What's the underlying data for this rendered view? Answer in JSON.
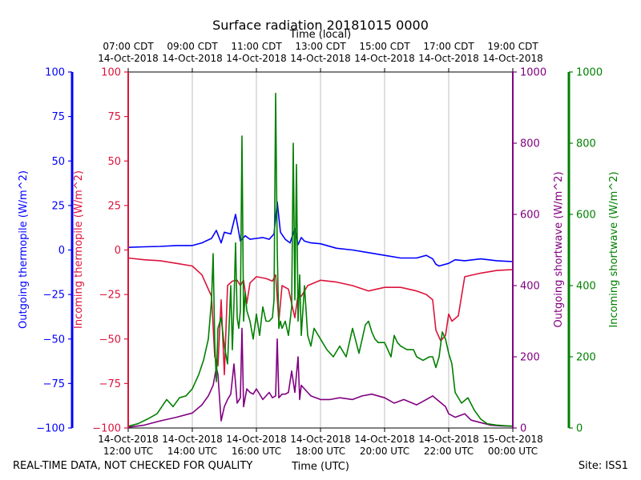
{
  "chart_data": {
    "type": "line",
    "title": "Surface radiation 20181015 0000",
    "top_axis_label": "Time (local)",
    "xlabel": "Time (UTC)",
    "x_range": [
      "2018-10-14T12:00Z",
      "2018-10-15T00:00Z"
    ],
    "x_bottom_ticks": [
      [
        "14-Oct-2018",
        "12:00 UTC"
      ],
      [
        "14-Oct-2018",
        "14:00 UTC"
      ],
      [
        "14-Oct-2018",
        "16:00 UTC"
      ],
      [
        "14-Oct-2018",
        "18:00 UTC"
      ],
      [
        "14-Oct-2018",
        "20:00 UTC"
      ],
      [
        "14-Oct-2018",
        "22:00 UTC"
      ],
      [
        "15-Oct-2018",
        "00:00 UTC"
      ]
    ],
    "x_top_ticks": [
      [
        "07:00 CDT",
        "14-Oct-2018"
      ],
      [
        "09:00 CDT",
        "14-Oct-2018"
      ],
      [
        "11:00 CDT",
        "14-Oct-2018"
      ],
      [
        "13:00 CDT",
        "14-Oct-2018"
      ],
      [
        "15:00 CDT",
        "14-Oct-2018"
      ],
      [
        "17:00 CDT",
        "14-Oct-2018"
      ],
      [
        "19:00 CDT",
        "14-Oct-2018"
      ]
    ],
    "grid": "vertical lines at x ticks",
    "axes": [
      {
        "label": "Outgoing thermopile (W/m^2)",
        "side": "left-outer",
        "color": "#0000ff",
        "ylim": [
          -100,
          100
        ],
        "ticks": [
          -100,
          -75,
          -50,
          -25,
          0,
          25,
          50,
          75,
          100
        ]
      },
      {
        "label": "Incoming thermopile (W/m^2)",
        "side": "left-inner",
        "color": "#dc143c",
        "ylim": [
          -100,
          100
        ],
        "ticks": [
          -100,
          -75,
          -50,
          -25,
          0,
          25,
          50,
          75,
          100
        ]
      },
      {
        "label": "Outgoing shortwave (W/m^2)",
        "side": "right-inner",
        "color": "#800080",
        "ylim": [
          0,
          1000
        ],
        "ticks": [
          0,
          200,
          400,
          600,
          800,
          1000
        ]
      },
      {
        "label": "Incoming shortwave (W/m^2)",
        "side": "right-outer",
        "color": "#008000",
        "ylim": [
          0,
          1000
        ],
        "ticks": [
          0,
          200,
          400,
          600,
          800,
          1000
        ]
      }
    ],
    "series": [
      {
        "name": "Outgoing thermopile",
        "color": "#0000ff",
        "axis": 0,
        "x_hours_utc": [
          12.0,
          12.5,
          13.0,
          13.5,
          14.0,
          14.3,
          14.6,
          14.75,
          14.9,
          15.0,
          15.2,
          15.35,
          15.5,
          15.65,
          15.8,
          16.0,
          16.2,
          16.4,
          16.55,
          16.65,
          16.75,
          16.9,
          17.05,
          17.2,
          17.3,
          17.4,
          17.5,
          17.7,
          18.0,
          18.5,
          19.0,
          19.5,
          20.0,
          20.5,
          21.0,
          21.3,
          21.5,
          21.6,
          21.7,
          22.0,
          22.2,
          22.5,
          23.0,
          23.5,
          24.0
        ],
        "y": [
          1.5,
          1.8,
          2.0,
          2.5,
          2.5,
          4.0,
          6.5,
          11.0,
          4.0,
          10.0,
          9.0,
          20.0,
          5.0,
          8.0,
          6.0,
          6.5,
          7.0,
          6.0,
          9.0,
          27.0,
          10.0,
          6.0,
          4.0,
          12.0,
          3.0,
          7.0,
          5.0,
          4.0,
          3.5,
          1.0,
          0.0,
          -1.5,
          -3.0,
          -4.5,
          -4.5,
          -3.0,
          -5.0,
          -8.0,
          -9.0,
          -7.5,
          -5.5,
          -6.0,
          -5.0,
          -6.0,
          -6.5
        ]
      },
      {
        "name": "Incoming thermopile",
        "color": "#dc143c",
        "axis": 1,
        "x_hours_utc": [
          12.0,
          12.5,
          13.0,
          13.5,
          14.0,
          14.3,
          14.45,
          14.6,
          14.7,
          14.8,
          14.9,
          15.0,
          15.1,
          15.25,
          15.4,
          15.5,
          15.6,
          15.7,
          15.8,
          16.0,
          16.3,
          16.5,
          16.6,
          16.7,
          16.8,
          17.0,
          17.2,
          17.3,
          17.4,
          17.6,
          18.0,
          18.5,
          19.0,
          19.5,
          20.0,
          20.5,
          21.0,
          21.3,
          21.5,
          21.6,
          21.75,
          21.9,
          22.0,
          22.1,
          22.3,
          22.5,
          23.0,
          23.5,
          24.0
        ],
        "y": [
          -4.5,
          -5.5,
          -6.0,
          -7.5,
          -9.0,
          -14.0,
          -20.0,
          -26.0,
          -60.0,
          -65.0,
          -28.0,
          -70.0,
          -20.0,
          -17.5,
          -17.0,
          -20.0,
          -17.0,
          -30.0,
          -18.5,
          -15.0,
          -16.0,
          -17.5,
          -14.0,
          -40.0,
          -20.0,
          -22.0,
          -38.0,
          -25.0,
          -26.0,
          -20.0,
          -17.0,
          -18.0,
          -20.0,
          -23.0,
          -21.0,
          -21.0,
          -23.0,
          -25.0,
          -28.0,
          -45.0,
          -51.0,
          -48.0,
          -36.0,
          -40.0,
          -37.0,
          -15.0,
          -13.0,
          -11.5,
          -11.0
        ]
      },
      {
        "name": "Outgoing shortwave",
        "color": "#800080",
        "axis": 2,
        "x_hours_utc": [
          12.0,
          12.5,
          13.0,
          13.5,
          14.0,
          14.3,
          14.5,
          14.65,
          14.75,
          14.8,
          14.9,
          15.0,
          15.1,
          15.2,
          15.3,
          15.4,
          15.5,
          15.55,
          15.6,
          15.7,
          15.8,
          15.9,
          16.0,
          16.2,
          16.4,
          16.5,
          16.6,
          16.65,
          16.7,
          16.8,
          16.9,
          17.0,
          17.1,
          17.2,
          17.3,
          17.35,
          17.4,
          17.5,
          17.6,
          17.7,
          18.0,
          18.3,
          18.6,
          19.0,
          19.3,
          19.6,
          20.0,
          20.3,
          20.6,
          21.0,
          21.3,
          21.5,
          21.7,
          21.9,
          22.0,
          22.2,
          22.5,
          22.7,
          23.0,
          23.3,
          23.6,
          24.0
        ],
        "y": [
          2,
          8,
          20,
          30,
          42,
          65,
          90,
          120,
          170,
          150,
          20,
          60,
          80,
          95,
          180,
          70,
          85,
          280,
          60,
          110,
          100,
          95,
          110,
          80,
          100,
          85,
          90,
          250,
          85,
          95,
          95,
          100,
          160,
          100,
          200,
          80,
          120,
          110,
          100,
          90,
          80,
          80,
          85,
          80,
          90,
          95,
          85,
          70,
          80,
          65,
          80,
          90,
          75,
          60,
          40,
          30,
          40,
          22,
          15,
          8,
          6,
          5
        ]
      },
      {
        "name": "Incoming shortwave",
        "color": "#008000",
        "axis": 3,
        "x_hours_utc": [
          12.0,
          12.3,
          12.6,
          12.9,
          13.2,
          13.4,
          13.6,
          13.8,
          14.0,
          14.2,
          14.35,
          14.5,
          14.6,
          14.65,
          14.7,
          14.75,
          14.8,
          14.9,
          15.0,
          15.1,
          15.2,
          15.25,
          15.3,
          15.35,
          15.4,
          15.45,
          15.5,
          15.55,
          15.6,
          15.65,
          15.7,
          15.8,
          15.9,
          16.0,
          16.1,
          16.2,
          16.3,
          16.4,
          16.5,
          16.55,
          16.6,
          16.65,
          16.7,
          16.75,
          16.8,
          16.9,
          17.0,
          17.1,
          17.15,
          17.2,
          17.25,
          17.3,
          17.35,
          17.4,
          17.5,
          17.6,
          17.7,
          17.8,
          18.0,
          18.2,
          18.4,
          18.6,
          18.8,
          19.0,
          19.2,
          19.4,
          19.5,
          19.6,
          19.7,
          19.8,
          20.0,
          20.2,
          20.3,
          20.4,
          20.5,
          20.7,
          20.9,
          21.0,
          21.2,
          21.4,
          21.5,
          21.6,
          21.7,
          21.8,
          21.9,
          22.0,
          22.1,
          22.2,
          22.4,
          22.6,
          22.8,
          23.0,
          23.2,
          23.5,
          24.0
        ],
        "y": [
          5,
          12,
          25,
          40,
          80,
          60,
          85,
          90,
          110,
          150,
          190,
          250,
          360,
          490,
          240,
          130,
          280,
          310,
          230,
          180,
          400,
          220,
          350,
          520,
          310,
          280,
          330,
          820,
          300,
          380,
          330,
          300,
          250,
          320,
          260,
          340,
          300,
          300,
          310,
          360,
          940,
          500,
          280,
          300,
          280,
          300,
          260,
          340,
          800,
          360,
          740,
          300,
          430,
          260,
          400,
          260,
          230,
          280,
          250,
          220,
          200,
          230,
          200,
          280,
          210,
          290,
          300,
          270,
          250,
          240,
          240,
          200,
          260,
          240,
          230,
          220,
          220,
          200,
          190,
          200,
          200,
          170,
          200,
          270,
          250,
          210,
          180,
          100,
          70,
          85,
          50,
          25,
          12,
          8,
          5
        ]
      }
    ],
    "footnote": "REAL-TIME DATA, NOT CHECKED FOR QUALITY",
    "site": "Site: ISS1"
  }
}
